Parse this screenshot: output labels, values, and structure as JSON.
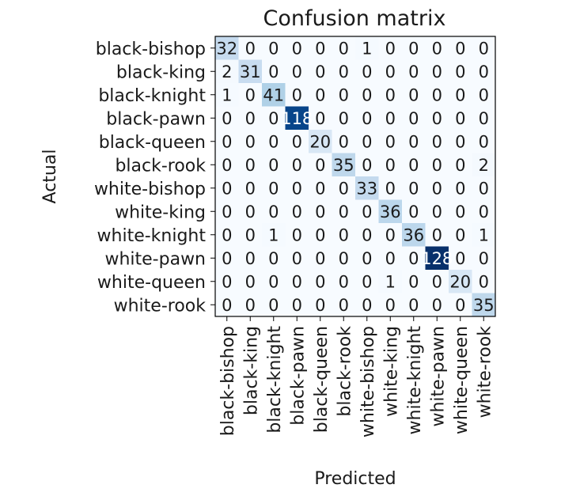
{
  "chart_data": {
    "type": "heatmap",
    "title": "Confusion matrix",
    "xlabel": "Predicted",
    "ylabel": "Actual",
    "colormap": "Blues",
    "x_categories": [
      "black-bishop",
      "black-king",
      "black-knight",
      "black-pawn",
      "black-queen",
      "black-rook",
      "white-bishop",
      "white-king",
      "white-knight",
      "white-pawn",
      "white-queen",
      "white-rook"
    ],
    "y_categories": [
      "black-bishop",
      "black-king",
      "black-knight",
      "black-pawn",
      "black-queen",
      "black-rook",
      "white-bishop",
      "white-king",
      "white-knight",
      "white-pawn",
      "white-queen",
      "white-rook"
    ],
    "values": [
      [
        32,
        0,
        0,
        0,
        0,
        0,
        1,
        0,
        0,
        0,
        0,
        0
      ],
      [
        2,
        31,
        0,
        0,
        0,
        0,
        0,
        0,
        0,
        0,
        0,
        0
      ],
      [
        1,
        0,
        41,
        0,
        0,
        0,
        0,
        0,
        0,
        0,
        0,
        0
      ],
      [
        0,
        0,
        0,
        118,
        0,
        0,
        0,
        0,
        0,
        0,
        0,
        0
      ],
      [
        0,
        0,
        0,
        0,
        20,
        0,
        0,
        0,
        0,
        0,
        0,
        0
      ],
      [
        0,
        0,
        0,
        0,
        0,
        35,
        0,
        0,
        0,
        0,
        0,
        2
      ],
      [
        0,
        0,
        0,
        0,
        0,
        0,
        33,
        0,
        0,
        0,
        0,
        0
      ],
      [
        0,
        0,
        0,
        0,
        0,
        0,
        0,
        36,
        0,
        0,
        0,
        0
      ],
      [
        0,
        0,
        1,
        0,
        0,
        0,
        0,
        0,
        36,
        0,
        0,
        1
      ],
      [
        0,
        0,
        0,
        0,
        0,
        0,
        0,
        0,
        0,
        128,
        0,
        0
      ],
      [
        0,
        0,
        0,
        0,
        0,
        0,
        0,
        1,
        0,
        0,
        20,
        0
      ],
      [
        0,
        0,
        0,
        0,
        0,
        0,
        0,
        0,
        0,
        0,
        0,
        35
      ]
    ],
    "grid": false,
    "legend": "none"
  }
}
